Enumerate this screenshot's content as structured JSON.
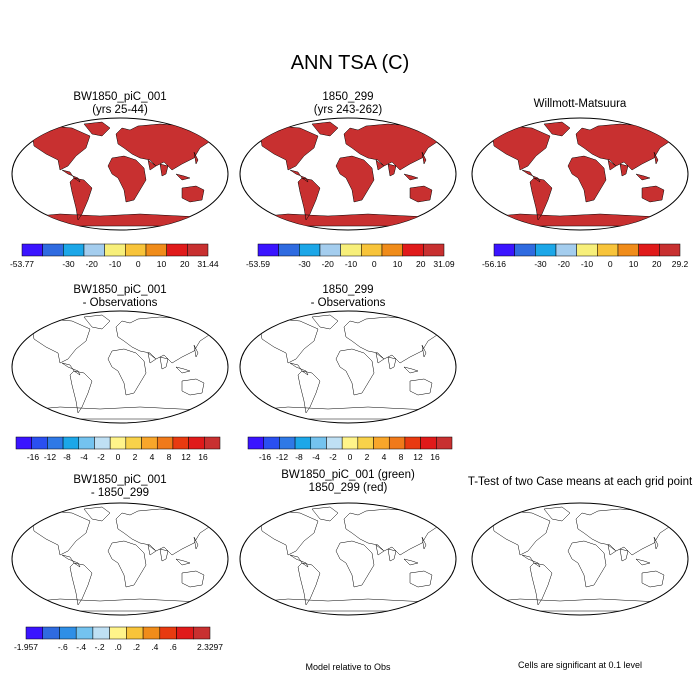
{
  "main_title": "ANN TSA (C)",
  "panels": [
    {
      "title": [
        "BW1850_piC_001",
        "(yrs 25-44)"
      ],
      "style": "abs"
    },
    {
      "title": [
        "1850_299",
        "(yrs 243-262)"
      ],
      "style": "abs"
    },
    {
      "title": [
        "Willmott-Matsuura"
      ],
      "style": "abs"
    },
    {
      "title": [
        "BW1850_piC_001",
        "- Observations"
      ],
      "style": "bias"
    },
    {
      "title": [
        "1850_299",
        "- Observations"
      ],
      "style": "bias"
    },
    {
      "title": [
        "BW1850_piC_001",
        "- 1850_299"
      ],
      "style": "diff"
    },
    {
      "title": [
        "BW1850_piC_001 (green)",
        "1850_299 (red)"
      ],
      "style": "green"
    },
    {
      "title": [
        "T-Test of two Case means at each grid point"
      ],
      "style": "ttest"
    }
  ],
  "colorbars": [
    {
      "labels": [
        "-53.77",
        "",
        "-30",
        "-20",
        "-10",
        "0",
        "10",
        "20",
        "31.44"
      ]
    },
    {
      "labels": [
        "-53.59",
        "",
        "-30",
        "-20",
        "-10",
        "0",
        "10",
        "20",
        "31.09"
      ]
    },
    {
      "labels": [
        "-56.16",
        "",
        "-30",
        "-20",
        "-10",
        "0",
        "10",
        "20",
        "29.2"
      ]
    },
    {
      "labels": [
        "",
        "-16",
        "-12",
        "-8",
        "-4",
        "-2",
        "0",
        "2",
        "4",
        "8",
        "12",
        "16",
        ""
      ]
    },
    {
      "labels": [
        "",
        "-16",
        "-12",
        "-8",
        "-4",
        "-2",
        "0",
        "2",
        "4",
        "8",
        "12",
        "16",
        ""
      ]
    },
    {
      "labels": [
        "-1.957",
        "",
        "-.6",
        "-.4",
        "-.2",
        ".0",
        ".2",
        ".4",
        ".6",
        "",
        "2.3297"
      ]
    }
  ],
  "captions": {
    "model_relative": "Model relative to Obs",
    "significance": "Cells are significant at 0.1 level"
  },
  "colors": {
    "abs": [
      "#3a14ff",
      "#2f6be0",
      "#1ca7e8",
      "#a4cdee",
      "#f7ef7a",
      "#f8c43a",
      "#f08c1a",
      "#e01a1a",
      "#c83030"
    ],
    "bias": [
      "#3a14ff",
      "#2a4ff0",
      "#2f79e6",
      "#1ca7e8",
      "#74c3ef",
      "#bfe0f4",
      "#fff48a",
      "#f8d24a",
      "#f8a62a",
      "#f07a1a",
      "#e83a10",
      "#e01a1a",
      "#c83030"
    ],
    "diff": [
      "#3a14ff",
      "#2f6be0",
      "#2f8fe6",
      "#74c3ef",
      "#bfe0f4",
      "#fff48a",
      "#f8c43a",
      "#f08c1a",
      "#e83a10",
      "#e01a1a",
      "#c83030"
    ],
    "significant_red": "#ff0000",
    "significant_green": "#00e000"
  }
}
